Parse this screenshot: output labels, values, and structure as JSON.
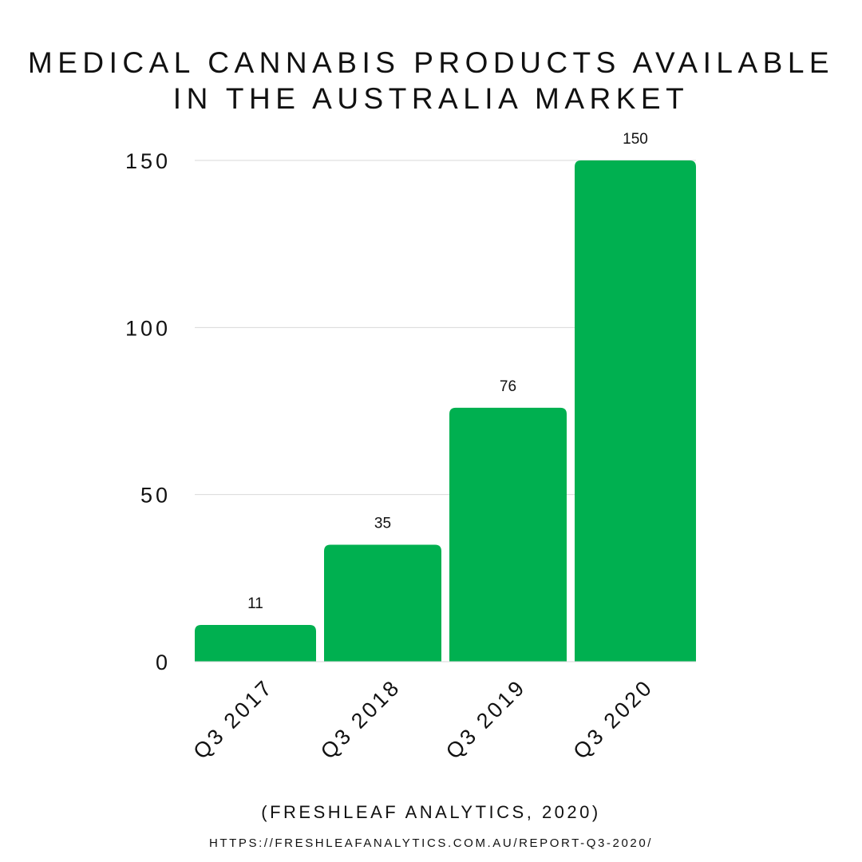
{
  "chart_data": {
    "type": "bar",
    "title_lines": [
      "MEDICAL CANNABIS PRODUCTS AVAILABLE",
      "IN THE AUSTRALIA MARKET"
    ],
    "categories": [
      "Q3 2017",
      "Q3 2018",
      "Q3 2019",
      "Q3 2020"
    ],
    "values": [
      11,
      35,
      76,
      150
    ],
    "data_labels": [
      "11",
      "35",
      "76",
      "150"
    ],
    "ylim": [
      0,
      150
    ],
    "yticks": [
      0,
      50,
      100,
      150
    ],
    "ytick_labels": [
      "0",
      "50",
      "100",
      "150"
    ],
    "xlabel": "",
    "ylabel": "",
    "grid": true,
    "legend": "none",
    "bar_color": "#00b050",
    "grid_color": "#d9d9d9"
  },
  "footer": {
    "source": "(FRESHLEAF ANALYTICS, 2020)",
    "url": "HTTPS://FRESHLEAFANALYTICS.COM.AU/REPORT-Q3-2020/"
  }
}
